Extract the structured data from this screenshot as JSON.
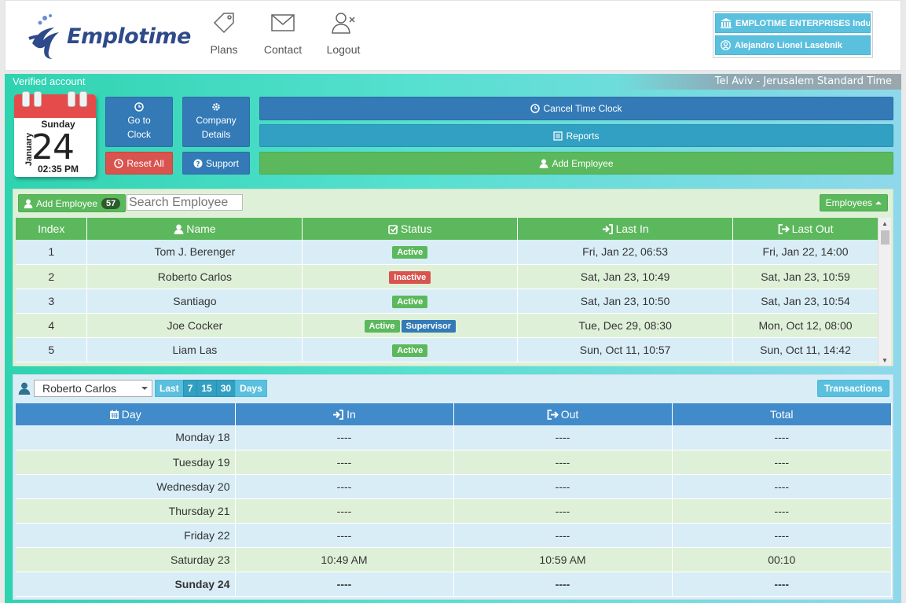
{
  "header": {
    "logo_text": "Emplotime",
    "nav": [
      {
        "label": "Plans",
        "icon": "tag-icon"
      },
      {
        "label": "Contact",
        "icon": "envelope-icon"
      },
      {
        "label": "Logout",
        "icon": "user-remove-icon"
      }
    ],
    "company": "EMPLOTIME ENTERPRISES Indu",
    "user": "Alejandro Lionel Lasebnik"
  },
  "topbar": {
    "verified": "Verified account",
    "timezone": "Tel Aviv - Jerusalem Standard Time"
  },
  "calendar": {
    "day_name": "Sunday",
    "month": "January",
    "day_number": "24",
    "time": "02:35 PM"
  },
  "actions": {
    "go_to_clock_line1": "Go to",
    "go_to_clock_line2": "Clock",
    "company_details_line1": "Company",
    "company_details_line2": "Details",
    "reset_all": "Reset All",
    "support": "Support",
    "cancel_time_clock": "Cancel Time Clock",
    "reports": "Reports",
    "add_employee": "Add Employee"
  },
  "employees": {
    "add_label": "Add Employee",
    "count": "57",
    "search_placeholder": "Search Employee",
    "dropdown_label": "Employees",
    "columns": [
      "Index",
      "Name",
      "Status",
      "Last In",
      "Last Out"
    ],
    "rows": [
      {
        "index": "1",
        "name": "Tom J. Berenger",
        "status": [
          "Active"
        ],
        "last_in": "Fri, Jan 22, 06:53",
        "last_out": "Fri, Jan 22, 14:00"
      },
      {
        "index": "2",
        "name": "Roberto Carlos",
        "status": [
          "Inactive"
        ],
        "last_in": "Sat, Jan 23, 10:49",
        "last_out": "Sat, Jan 23, 10:59"
      },
      {
        "index": "3",
        "name": "Santiago",
        "status": [
          "Active"
        ],
        "last_in": "Sat, Jan 23, 10:50",
        "last_out": "Sat, Jan 23, 10:54"
      },
      {
        "index": "4",
        "name": "Joe Cocker",
        "status": [
          "Active",
          "Supervisor"
        ],
        "last_in": "Tue, Dec 29, 08:30",
        "last_out": "Mon, Oct 12, 08:00"
      },
      {
        "index": "5",
        "name": "Liam Las",
        "status": [
          "Active"
        ],
        "last_in": "Sun, Oct 11, 10:57",
        "last_out": "Sun, Oct 11, 14:42"
      }
    ]
  },
  "transactions": {
    "selected_employee": "Roberto Carlos",
    "days_prefix": "Last",
    "day_options": [
      "7",
      "15",
      "30"
    ],
    "days_suffix": "Days",
    "button_label": "Transactions",
    "columns": [
      "Day",
      "In",
      "Out",
      "Total"
    ],
    "rows": [
      {
        "day": "Monday 18",
        "in": "----",
        "out": "----",
        "total": "----"
      },
      {
        "day": "Tuesday 19",
        "in": "----",
        "out": "----",
        "total": "----"
      },
      {
        "day": "Wednesday 20",
        "in": "----",
        "out": "----",
        "total": "----"
      },
      {
        "day": "Thursday 21",
        "in": "----",
        "out": "----",
        "total": "----"
      },
      {
        "day": "Friday 22",
        "in": "----",
        "out": "----",
        "total": "----"
      },
      {
        "day": "Saturday 23",
        "in": "10:49 AM",
        "out": "10:59 AM",
        "total": "00:10"
      },
      {
        "day": "Sunday 24",
        "in": "----",
        "out": "----",
        "total": "----"
      }
    ]
  },
  "colors": {
    "primary": "#337ab7",
    "success": "#5cb85c",
    "danger": "#d9534f",
    "info": "#5bc0de"
  }
}
